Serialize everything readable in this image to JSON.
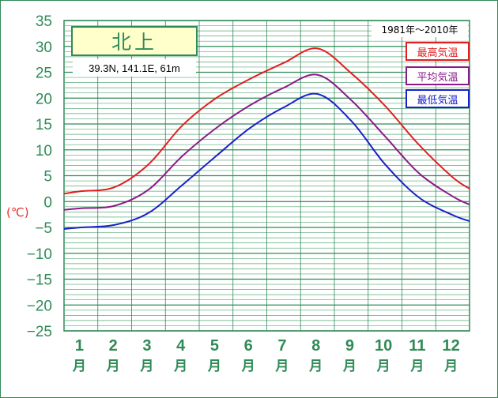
{
  "chart_data": {
    "type": "line",
    "station": "北上",
    "coords": "39.3N,  141.1E,  61m",
    "period": "1981年〜2010年",
    "ylabel": "(℃)",
    "ylim": [
      -25,
      35
    ],
    "yticks": [
      "35",
      "30",
      "25",
      "20",
      "15",
      "10",
      "5",
      "0",
      "−5",
      "−10",
      "−15",
      "−20",
      "−25"
    ],
    "months": [
      "1",
      "2",
      "3",
      "4",
      "5",
      "6",
      "7",
      "8",
      "9",
      "10",
      "11",
      "12"
    ],
    "month_unit": "月",
    "grid": true,
    "legend_position": "top-right",
    "series": [
      {
        "name": "最高気温",
        "color": "#e02020",
        "values": [
          2.0,
          2.8,
          7.2,
          14.7,
          20.0,
          23.7,
          26.8,
          29.6,
          24.8,
          18.5,
          11.0,
          4.7
        ]
      },
      {
        "name": "平均気温",
        "color": "#8b1a89",
        "values": [
          -1.3,
          -0.8,
          2.3,
          8.8,
          14.2,
          18.6,
          22.0,
          24.5,
          19.6,
          12.6,
          5.5,
          1.0
        ]
      },
      {
        "name": "最低気温",
        "color": "#1a20c8",
        "values": [
          -5.0,
          -4.5,
          -2.2,
          3.2,
          8.8,
          14.2,
          18.2,
          20.8,
          15.6,
          7.2,
          0.8,
          -2.6
        ]
      }
    ]
  }
}
